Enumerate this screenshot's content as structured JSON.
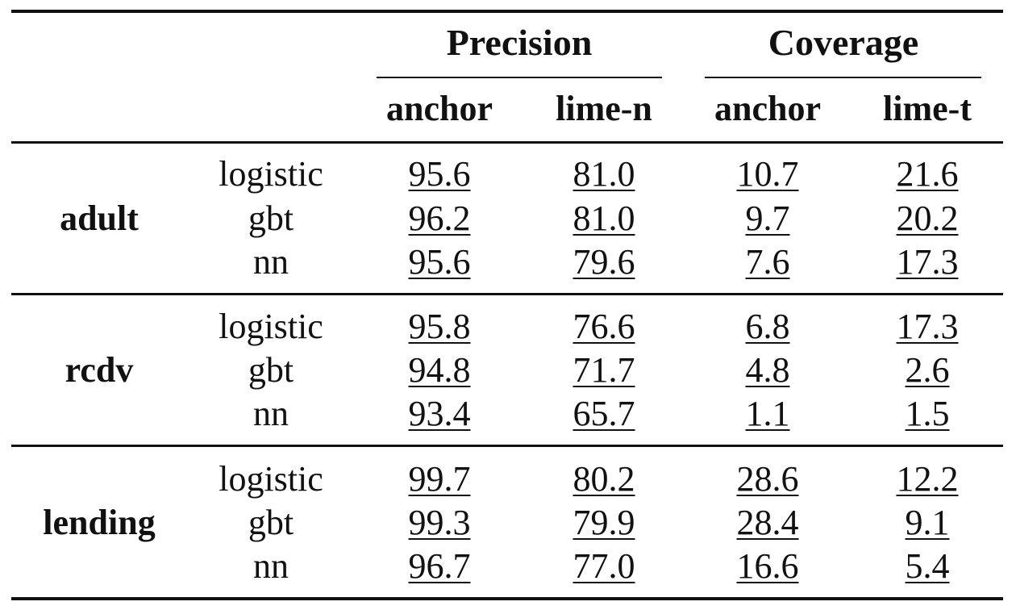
{
  "groups": [
    {
      "label": "Precision",
      "columns": [
        "anchor",
        "lime-n"
      ]
    },
    {
      "label": "Coverage",
      "columns": [
        "anchor",
        "lime-t"
      ]
    }
  ],
  "datasets": [
    {
      "name": "adult",
      "rows": [
        {
          "model": "logistic",
          "values": [
            "95.6",
            "81.0",
            "10.7",
            "21.6"
          ]
        },
        {
          "model": "gbt",
          "values": [
            "96.2",
            "81.0",
            "9.7",
            "20.2"
          ]
        },
        {
          "model": "nn",
          "values": [
            "95.6",
            "79.6",
            "7.6",
            "17.3"
          ]
        }
      ]
    },
    {
      "name": "rcdv",
      "rows": [
        {
          "model": "logistic",
          "values": [
            "95.8",
            "76.6",
            "6.8",
            "17.3"
          ]
        },
        {
          "model": "gbt",
          "values": [
            "94.8",
            "71.7",
            "4.8",
            "2.6"
          ]
        },
        {
          "model": "nn",
          "values": [
            "93.4",
            "65.7",
            "1.1",
            "1.5"
          ]
        }
      ]
    },
    {
      "name": "lending",
      "rows": [
        {
          "model": "logistic",
          "values": [
            "99.7",
            "80.2",
            "28.6",
            "12.2"
          ]
        },
        {
          "model": "gbt",
          "values": [
            "99.3",
            "79.9",
            "28.4",
            "9.1"
          ]
        },
        {
          "model": "nn",
          "values": [
            "96.7",
            "77.0",
            "16.6",
            "5.4"
          ]
        }
      ]
    }
  ]
}
